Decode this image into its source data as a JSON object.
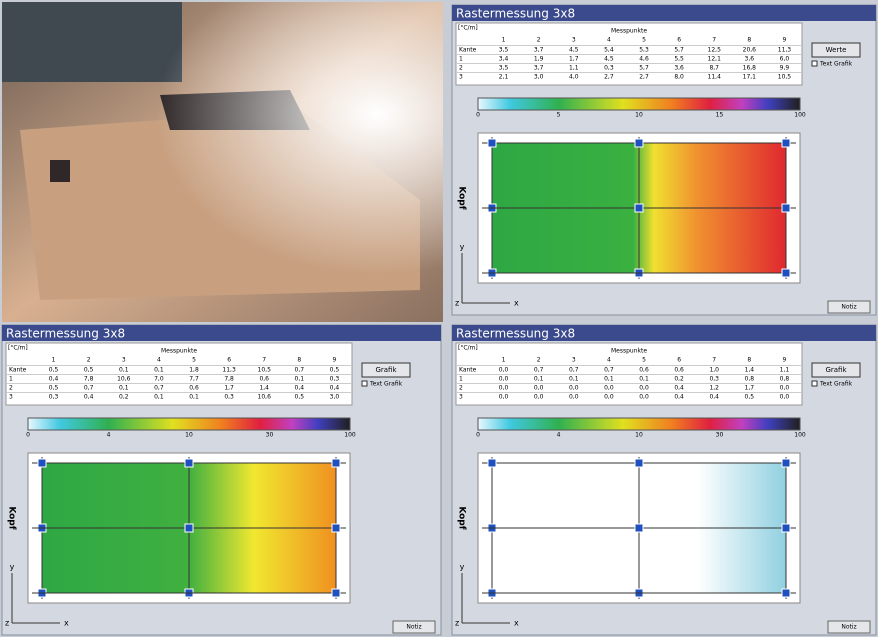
{
  "panels": [
    {
      "title": "Rastermessung 3x8",
      "unit": "[°C/m]",
      "table_title": "Messpunkte",
      "columns": [
        "1",
        "2",
        "3",
        "4",
        "5",
        "6",
        "7",
        "8",
        "9"
      ],
      "rows": [
        [
          "Kante",
          "3,5",
          "3,7",
          "4,5",
          "5,4",
          "5,3",
          "5,7",
          "12,5",
          "20,6",
          "11,3"
        ],
        [
          "1",
          "3,4",
          "1,9",
          "1,7",
          "4,5",
          "4,6",
          "5,5",
          "12,1",
          "3,6",
          "6,0"
        ],
        [
          "2",
          "3,5",
          "3,7",
          "1,1",
          "0,3",
          "5,7",
          "3,6",
          "8,7",
          "16,8",
          "9,9"
        ],
        [
          "3",
          "2,1",
          "3,0",
          "4,0",
          "2,7",
          "2,7",
          "8,0",
          "11,4",
          "17,1",
          "10,5"
        ]
      ],
      "button": "Werte",
      "checkbox": "Text Grafik",
      "scale": [
        "0",
        "5",
        "10",
        "15",
        "100"
      ],
      "side_label": "Kopf",
      "y": "y",
      "x": "x",
      "z": "z",
      "note": "Notiz"
    },
    {
      "title": "Rastermessung 3x8",
      "unit": "[°C/m]",
      "table_title": "Messpunkte",
      "columns": [
        "1",
        "2",
        "3",
        "4",
        "5",
        "6",
        "7",
        "8",
        "9"
      ],
      "rows": [
        [
          "Kante",
          "0,5",
          "0,5",
          "0,1",
          "0,1",
          "1,8",
          "11,3",
          "10,5",
          "0,7",
          "0,5"
        ],
        [
          "1",
          "0,4",
          "7,8",
          "10,6",
          "7,0",
          "7,7",
          "7,8",
          "0,6",
          "0,1",
          "0,3"
        ],
        [
          "2",
          "0,5",
          "0,7",
          "0,1",
          "0,7",
          "0,6",
          "1,7",
          "1,4",
          "0,4",
          "0,4"
        ],
        [
          "3",
          "0,3",
          "0,4",
          "0,2",
          "0,1",
          "0,1",
          "0,3",
          "10,6",
          "0,5",
          "3,0"
        ]
      ],
      "button": "Grafik",
      "checkbox": "Text Grafik",
      "scale": [
        "0",
        "4",
        "10",
        "30",
        "100"
      ],
      "side_label": "Kopf",
      "y": "y",
      "x": "x",
      "z": "z",
      "note": "Notiz"
    },
    {
      "title": "Rastermessung 3x8",
      "unit": "[°C/m]",
      "table_title": "Messpunkte",
      "columns": [
        "1",
        "2",
        "3",
        "4",
        "5",
        "6",
        "7",
        "8",
        "9"
      ],
      "rows": [
        [
          "Kante",
          "0,0",
          "0,7",
          "0,7",
          "0,7",
          "0,6",
          "0,6",
          "1,0",
          "1,4",
          "1,1"
        ],
        [
          "1",
          "0,0",
          "0,1",
          "0,1",
          "0,1",
          "0,1",
          "0,2",
          "0,3",
          "0,8",
          "0,8"
        ],
        [
          "2",
          "0,0",
          "0,0",
          "0,0",
          "0,0",
          "0,0",
          "0,4",
          "1,2",
          "1,7",
          "0,0"
        ],
        [
          "3",
          "0,0",
          "0,0",
          "0,0",
          "0,0",
          "0,0",
          "0,4",
          "0,4",
          "0,5",
          "0,0"
        ]
      ],
      "button": "Grafik",
      "checkbox": "Text Grafik",
      "scale": [
        "0",
        "4",
        "10",
        "30",
        "100"
      ],
      "side_label": "Kopf",
      "y": "y",
      "x": "x",
      "z": "z",
      "note": "Notiz"
    }
  ]
}
